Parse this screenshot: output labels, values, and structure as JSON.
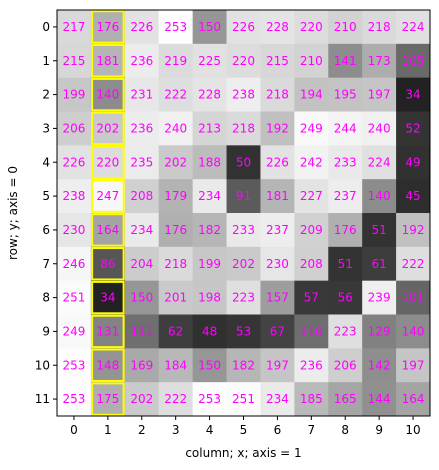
{
  "chart_data": {
    "type": "heatmap",
    "title": "",
    "xlabel": "column; x; axis = 1",
    "ylabel": "row; y; axis = 0",
    "x_ticks": [
      "0",
      "1",
      "2",
      "3",
      "4",
      "5",
      "6",
      "7",
      "8",
      "9",
      "10"
    ],
    "y_ticks": [
      "0",
      "1",
      "2",
      "3",
      "4",
      "5",
      "6",
      "7",
      "8",
      "9",
      "10",
      "11"
    ],
    "colormap": "gray",
    "value_range": [
      0,
      255
    ],
    "values": [
      [
        217,
        176,
        226,
        253,
        150,
        226,
        228,
        220,
        210,
        218,
        224
      ],
      [
        215,
        181,
        236,
        219,
        225,
        220,
        215,
        210,
        141,
        173,
        105
      ],
      [
        199,
        140,
        231,
        222,
        228,
        238,
        218,
        194,
        195,
        197,
        34
      ],
      [
        206,
        202,
        236,
        240,
        213,
        218,
        192,
        249,
        244,
        240,
        52
      ],
      [
        226,
        220,
        235,
        202,
        188,
        50,
        226,
        242,
        233,
        224,
        49
      ],
      [
        238,
        247,
        208,
        179,
        234,
        91,
        181,
        227,
        237,
        140,
        45
      ],
      [
        230,
        164,
        234,
        176,
        182,
        233,
        237,
        209,
        176,
        51,
        192
      ],
      [
        246,
        86,
        204,
        218,
        199,
        202,
        230,
        208,
        51,
        61,
        222
      ],
      [
        251,
        34,
        150,
        201,
        198,
        223,
        157,
        57,
        56,
        239,
        101
      ],
      [
        249,
        131,
        111,
        62,
        48,
        53,
        67,
        110,
        223,
        129,
        140
      ],
      [
        253,
        148,
        169,
        184,
        150,
        182,
        197,
        236,
        206,
        142,
        197
      ],
      [
        253,
        175,
        202,
        222,
        253,
        251,
        234,
        185,
        165,
        144,
        164
      ]
    ],
    "highlighted_column": 1,
    "annotation_color": "#ff00ff",
    "highlight_color": "#ffff00",
    "grid": false
  }
}
